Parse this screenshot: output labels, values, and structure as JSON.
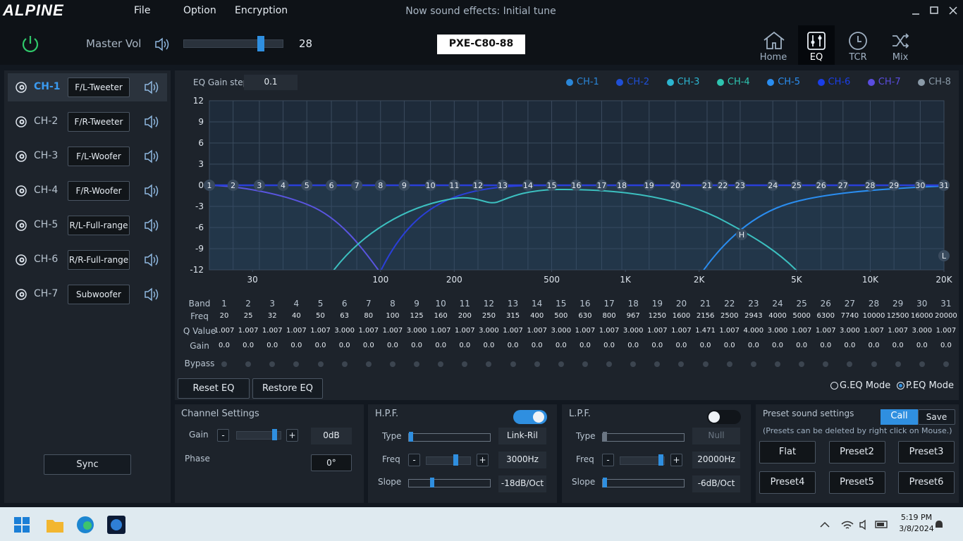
{
  "title_bar": {
    "logo": "ALPINE",
    "menu": [
      "File",
      "Option",
      "Encryption"
    ],
    "status": "Now sound effects: Initial tune"
  },
  "toolbar": {
    "master_vol_label": "Master Vol",
    "master_vol": 28,
    "device": "PXE-C80-88",
    "nav": [
      {
        "label": "Home",
        "selected": false
      },
      {
        "label": "EQ",
        "selected": true
      },
      {
        "label": "TCR",
        "selected": false
      },
      {
        "label": "Mix",
        "selected": false
      }
    ]
  },
  "channels": {
    "selected": 0,
    "items": [
      {
        "id": "CH-1",
        "name": "F/L-Tweeter"
      },
      {
        "id": "CH-2",
        "name": "F/R-Tweeter"
      },
      {
        "id": "CH-3",
        "name": "F/L-Woofer"
      },
      {
        "id": "CH-4",
        "name": "F/R-Woofer"
      },
      {
        "id": "CH-5",
        "name": "R/L-Full-range"
      },
      {
        "id": "CH-6",
        "name": "R/R-Full-range"
      },
      {
        "id": "CH-7",
        "name": "Subwoofer"
      }
    ],
    "sync": "Sync"
  },
  "eq": {
    "gain_step_label": "EQ Gain step",
    "gain_step": 0.1,
    "legend": [
      {
        "name": "CH-1",
        "color": "#2a86d8"
      },
      {
        "name": "CH-2",
        "color": "#1f4fd6"
      },
      {
        "name": "CH-3",
        "color": "#2cb5d0"
      },
      {
        "name": "CH-4",
        "color": "#2ec4b0"
      },
      {
        "name": "CH-5",
        "color": "#2a8df0"
      },
      {
        "name": "CH-6",
        "color": "#1a3ee8"
      },
      {
        "name": "CH-7",
        "color": "#5a4de0"
      },
      {
        "name": "CH-8",
        "color": "#8a9aa8"
      }
    ],
    "ylim": [
      -12,
      12
    ],
    "yticks": [
      12,
      9,
      6,
      3,
      0,
      -3,
      -6,
      -9,
      -12
    ],
    "xlim": [
      20,
      20000
    ],
    "xscale": "log",
    "xticks": [
      30,
      100,
      200,
      500,
      {
        "value": 1000,
        "label": "1K"
      },
      {
        "value": 2000,
        "label": "2K"
      },
      {
        "value": 5000,
        "label": "5K"
      },
      {
        "value": 10000,
        "label": "10K"
      },
      {
        "value": 20000,
        "label": "20K"
      }
    ],
    "hpf_marker": "H",
    "lpf_marker": "L"
  },
  "bands": {
    "row_labels": [
      "Band",
      "Freq",
      "Q Value",
      "Gain",
      "Bypass"
    ],
    "band": [
      1,
      2,
      3,
      4,
      5,
      6,
      7,
      8,
      9,
      10,
      11,
      12,
      13,
      14,
      15,
      16,
      17,
      18,
      19,
      20,
      21,
      22,
      23,
      24,
      25,
      26,
      27,
      28,
      29,
      30,
      31
    ],
    "freq": [
      20,
      25,
      32,
      40,
      50,
      63,
      80,
      100,
      125,
      160,
      200,
      250,
      315,
      400,
      500,
      630,
      800,
      967,
      1250,
      1600,
      2156,
      2500,
      2943,
      4000,
      5000,
      6300,
      7740,
      10000,
      12500,
      16000,
      20000
    ],
    "q": [
      "1.007",
      "1.007",
      "1.007",
      "1.007",
      "1.007",
      "3.000",
      "1.007",
      "1.007",
      "3.000",
      "1.007",
      "1.007",
      "3.000",
      "1.007",
      "1.007",
      "3.000",
      "1.007",
      "1.007",
      "3.000",
      "1.007",
      "1.007",
      "1.471",
      "1.007",
      "4.000",
      "3.000",
      "1.007",
      "1.007",
      "3.000",
      "1.007",
      "1.007",
      "3.000",
      "1.007"
    ],
    "gain": [
      "0.0",
      "0.0",
      "0.0",
      "0.0",
      "0.0",
      "0.0",
      "0.0",
      "0.0",
      "0.0",
      "0.0",
      "0.0",
      "0.0",
      "0.0",
      "0.0",
      "0.0",
      "0.0",
      "0.0",
      "0.0",
      "0.0",
      "0.0",
      "0.0",
      "0.0",
      "0.0",
      "0.0",
      "0.0",
      "0.0",
      "0.0",
      "0.0",
      "0.0",
      "0.0",
      "0.0"
    ],
    "bypass": [
      false,
      false,
      false,
      false,
      false,
      false,
      false,
      false,
      false,
      false,
      false,
      false,
      false,
      false,
      false,
      false,
      false,
      false,
      false,
      false,
      false,
      false,
      false,
      false,
      false,
      false,
      false,
      false,
      false,
      false,
      false
    ]
  },
  "eq_buttons": [
    "Reset EQ",
    "Restore EQ"
  ],
  "modes": {
    "options": [
      "G.EQ Mode",
      "P.EQ Mode"
    ],
    "selected": 1
  },
  "channel_settings": {
    "title": "Channel Settings",
    "gain_label": "Gain",
    "minus": "-",
    "plus": "+",
    "gain": "0dB",
    "phase_label": "Phase",
    "phase": "0°"
  },
  "hpf": {
    "title": "H.P.F.",
    "enabled": true,
    "type_label": "Type",
    "type": "Link-Ril",
    "freq_label": "Freq",
    "freq": "3000Hz",
    "slope_label": "Slope",
    "slope": "-18dB/Oct",
    "minus": "-",
    "plus": "+"
  },
  "lpf": {
    "title": "L.P.F.",
    "enabled": false,
    "type_label": "Type",
    "type": "Null",
    "freq_label": "Freq",
    "freq": "20000Hz",
    "slope_label": "Slope",
    "slope": "-6dB/Oct",
    "minus": "-",
    "plus": "+"
  },
  "presets": {
    "title": "Preset sound settings",
    "call": "Call",
    "save": "Save",
    "note": "(Presets can be deleted by right click on Mouse.)",
    "items": [
      "Flat",
      "Preset2",
      "Preset3",
      "Preset4",
      "Preset5",
      "Preset6"
    ]
  },
  "taskbar": {
    "time": "5:19 PM",
    "date": "3/8/2024"
  }
}
